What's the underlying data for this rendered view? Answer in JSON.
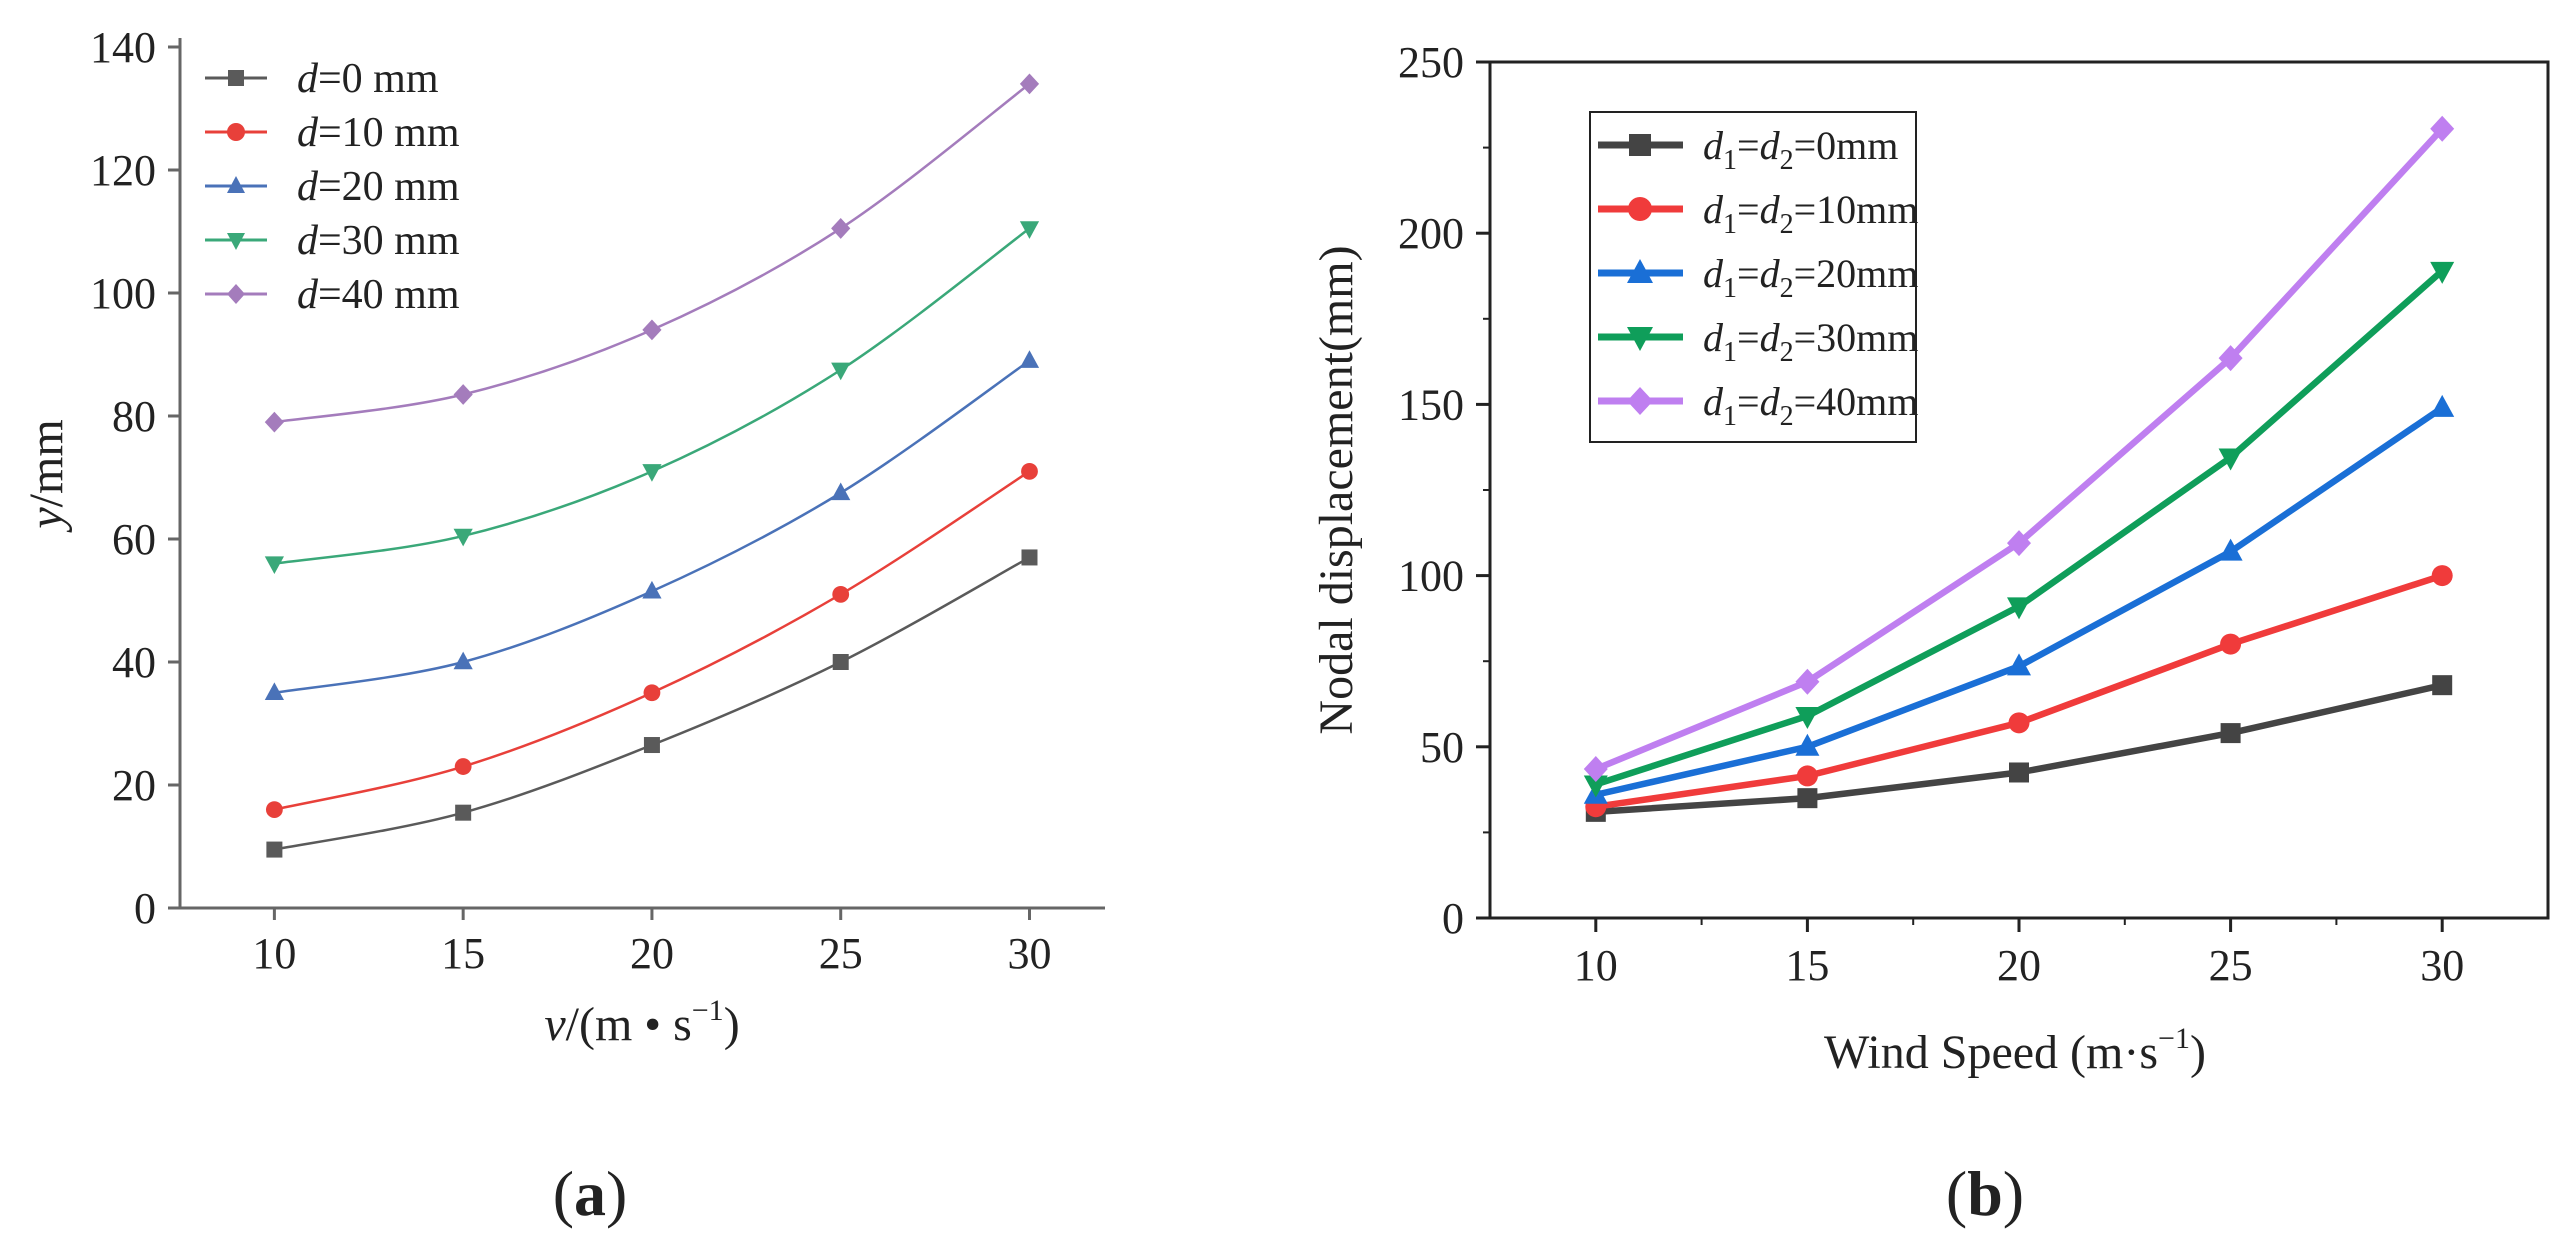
{
  "chart_data": [
    {
      "type": "line",
      "panel": "a",
      "x": [
        10,
        15,
        20,
        25,
        30
      ],
      "xticks": [
        "10",
        "15",
        "20",
        "25",
        "30"
      ],
      "yticks": [
        "0",
        "20",
        "40",
        "60",
        "80",
        "100",
        "120",
        "140"
      ],
      "xlim": [
        7.5,
        32
      ],
      "ylim": [
        0,
        140
      ],
      "xlabel": {
        "v": "v",
        "unit": "/(m • s",
        "exp": "−1",
        "close": ")"
      },
      "ylabel": {
        "v": "y",
        "unit": "/mm"
      },
      "legend_position": "top-left",
      "series": [
        {
          "name": "d=0 mm",
          "sym": "d",
          "rest": "=0 mm",
          "color": "#5a5a5a",
          "marker": "square",
          "values": [
            9.5,
            15.5,
            26.5,
            40,
            57
          ]
        },
        {
          "name": "d=10 mm",
          "sym": "d",
          "rest": "=10 mm",
          "color": "#e8403a",
          "marker": "circle",
          "values": [
            16,
            23,
            35,
            51,
            71
          ]
        },
        {
          "name": "d=20 mm",
          "sym": "d",
          "rest": "=20 mm",
          "color": "#4a72b8",
          "marker": "triangle-up",
          "values": [
            35,
            40,
            51.5,
            67.5,
            89
          ]
        },
        {
          "name": "d=30 mm",
          "sym": "d",
          "rest": "=30 mm",
          "color": "#3aa879",
          "marker": "triangle-down",
          "values": [
            56,
            60.5,
            71,
            87.5,
            110.5
          ]
        },
        {
          "name": "d=40 mm",
          "sym": "d",
          "rest": "=40 mm",
          "color": "#a47cbc",
          "marker": "diamond",
          "values": [
            79,
            83.5,
            94,
            110.5,
            134
          ]
        }
      ]
    },
    {
      "type": "line",
      "panel": "b",
      "x": [
        10,
        15,
        20,
        25,
        30
      ],
      "xticks": [
        "10",
        "15",
        "20",
        "25",
        "30"
      ],
      "yticks": [
        "0",
        "50",
        "100",
        "150",
        "200",
        "250"
      ],
      "xlim": [
        7.5,
        32.5
      ],
      "ylim": [
        0,
        250
      ],
      "xlabel": {
        "text": "Wind Speed (m·s",
        "exp": "−1",
        "close": ")"
      },
      "ylabel": "Nodal displacement(mm)",
      "legend_position": "top-left",
      "series": [
        {
          "name": "d1=d2=0mm",
          "rest": "=0mm",
          "color": "#444444",
          "marker": "square",
          "values": [
            31,
            35,
            42.5,
            54,
            68
          ]
        },
        {
          "name": "d1=d2=10mm",
          "rest": "=10mm",
          "color": "#f03b3b",
          "marker": "circle",
          "values": [
            32.5,
            41.5,
            57,
            80,
            100
          ]
        },
        {
          "name": "d1=d2=20mm",
          "rest": "=20mm",
          "color": "#1a6fd6",
          "marker": "triangle-up",
          "values": [
            36,
            50,
            73.5,
            107,
            149
          ]
        },
        {
          "name": "d1=d2=30mm",
          "rest": "=30mm",
          "color": "#0f9e5a",
          "marker": "triangle-down",
          "values": [
            39,
            59,
            91,
            134.5,
            189
          ]
        },
        {
          "name": "d1=d2=40mm",
          "rest": "=40mm",
          "color": "#bf7ff0",
          "marker": "diamond",
          "values": [
            43.5,
            69,
            109.5,
            163.5,
            230.5
          ]
        }
      ]
    }
  ],
  "panel_labels": {
    "a": "a",
    "b": "b"
  }
}
